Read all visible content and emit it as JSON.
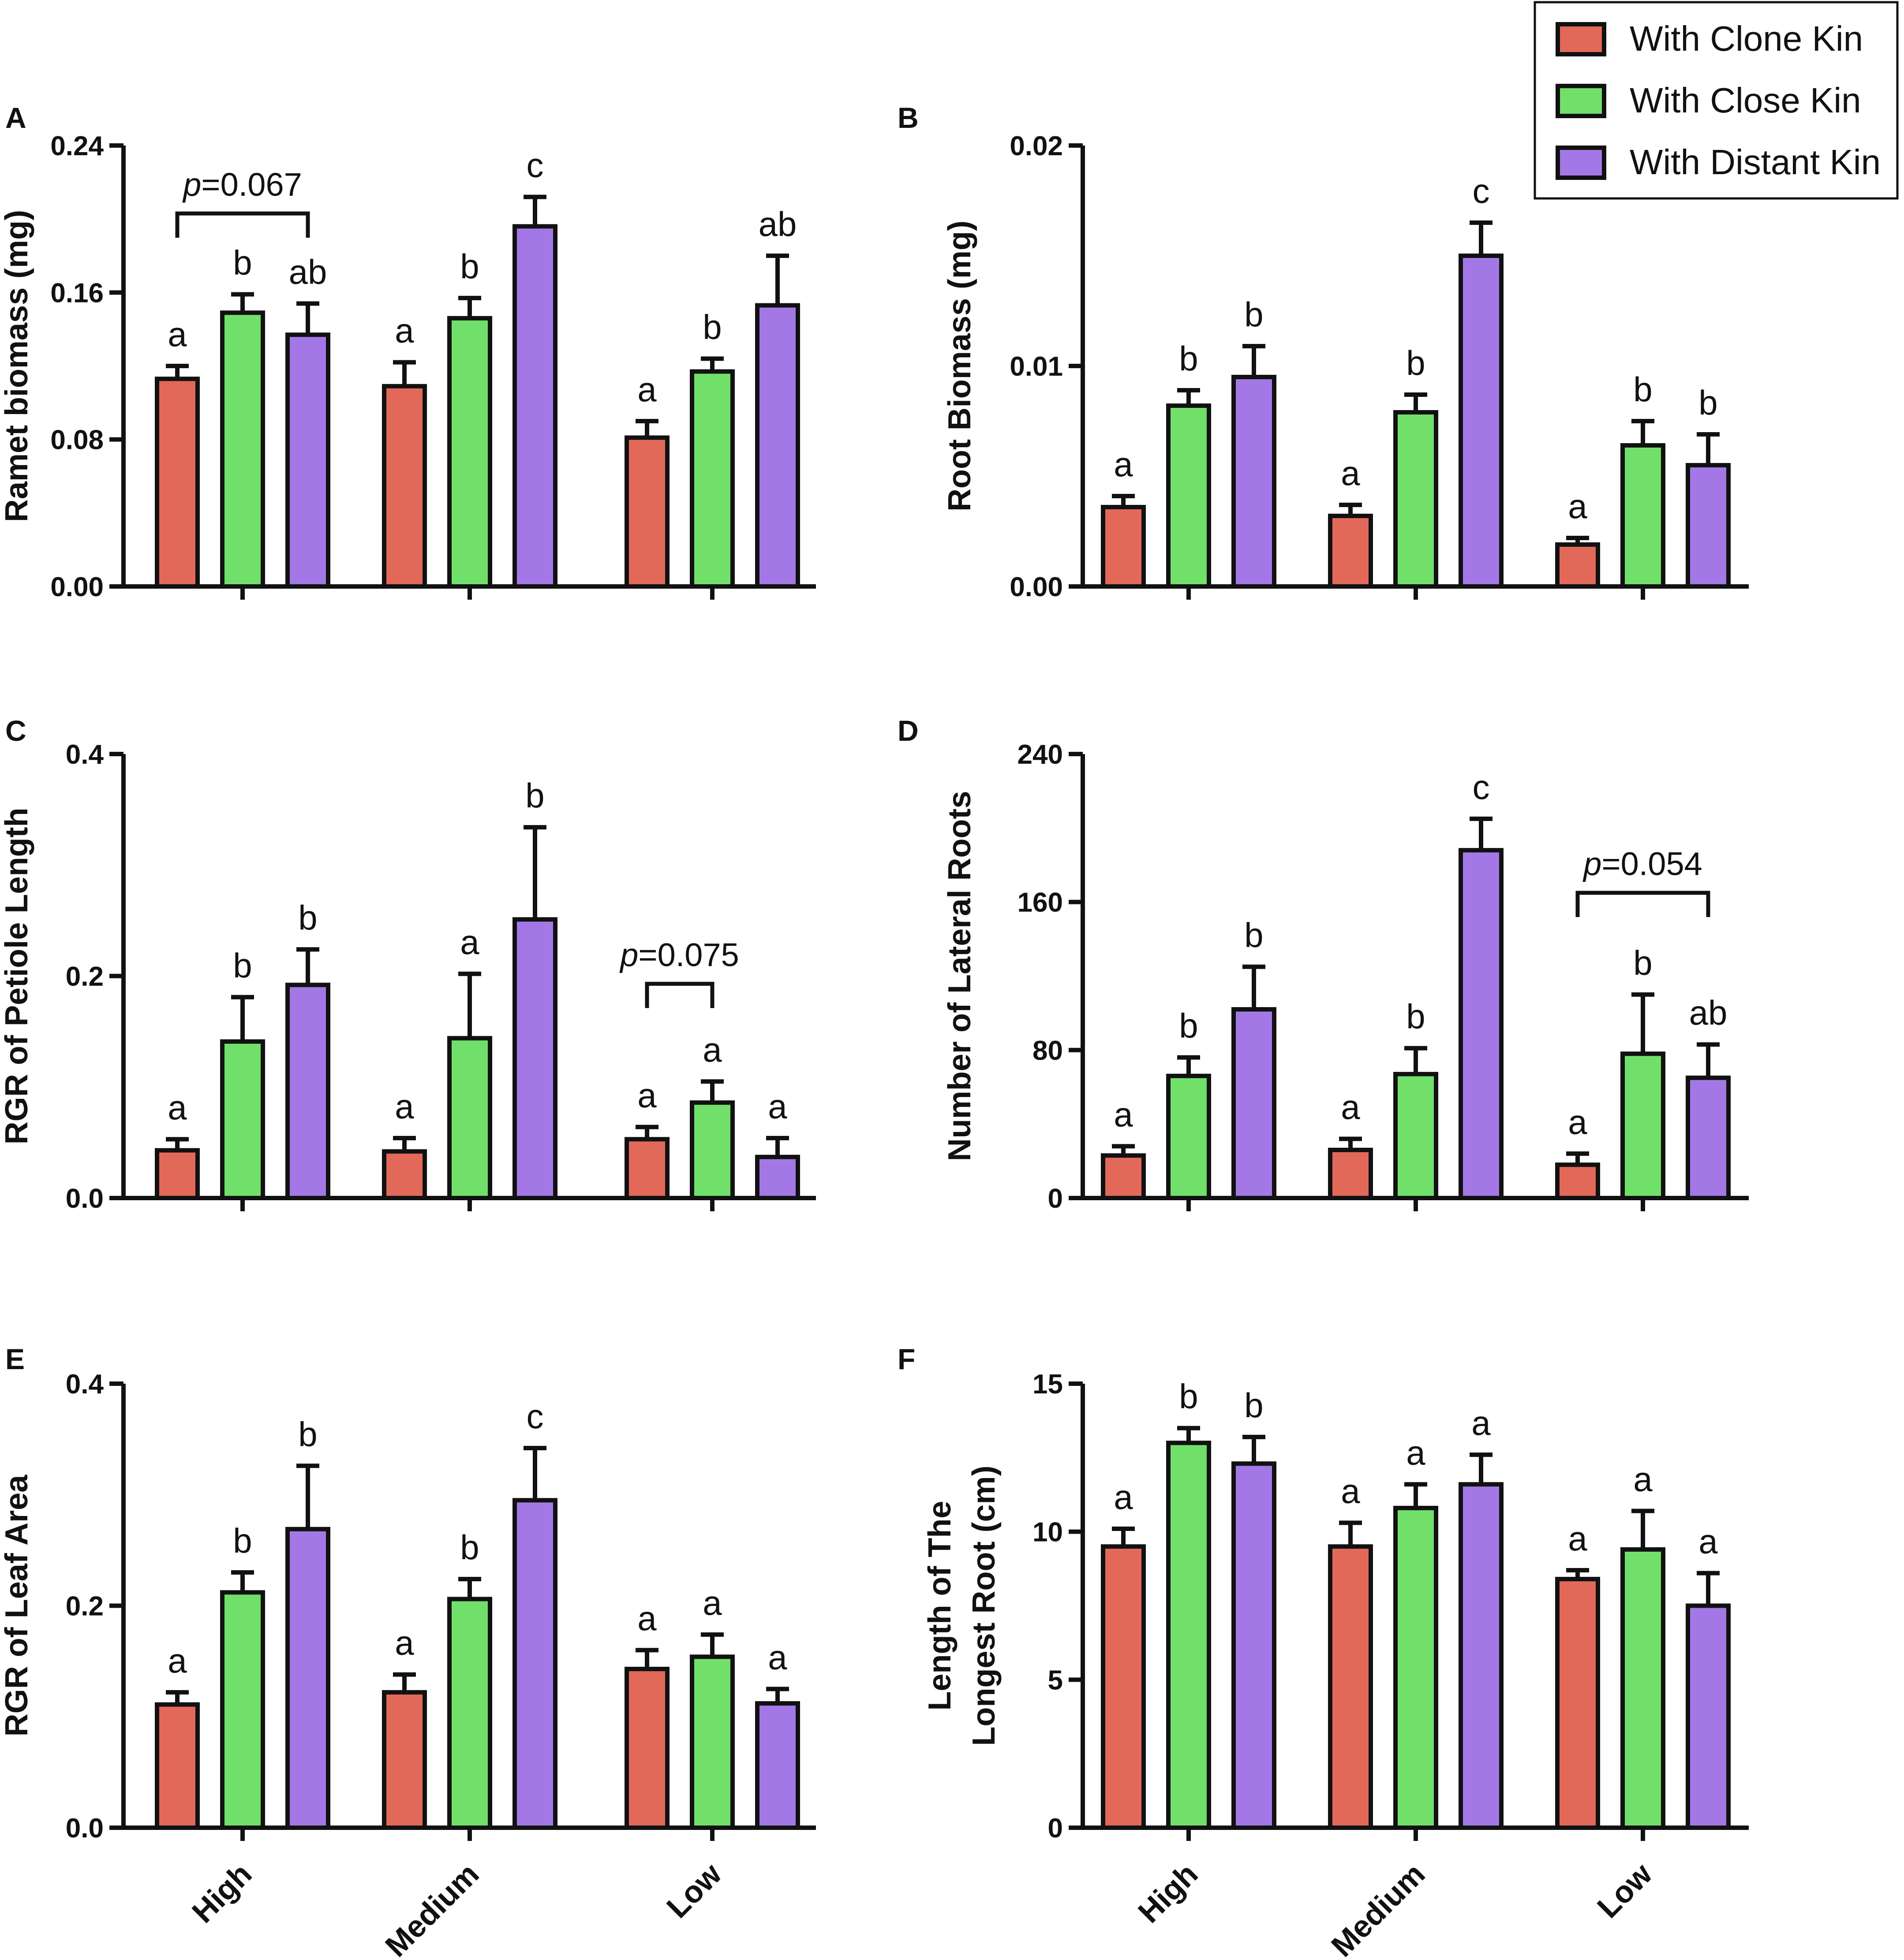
{
  "chart_data": {
    "legend": {
      "placement": "top-right",
      "entries": [
        {
          "label": "With Clone Kin",
          "color": "#e2695a"
        },
        {
          "label": "With Close Kin",
          "color": "#70e06a"
        },
        {
          "label": "With Distant Kin",
          "color": "#a378e6"
        }
      ]
    },
    "x_categories": [
      "High",
      "Medium",
      "Low"
    ],
    "panels": [
      {
        "id": "A",
        "type": "bar",
        "ylabel": "Ramet biomass (mg)",
        "ylim": [
          0,
          0.24
        ],
        "yticks": [
          0.0,
          0.08,
          0.16,
          0.24
        ],
        "ytick_labels": [
          "0.00",
          "0.08",
          "0.16",
          "0.24"
        ],
        "series": [
          {
            "name": "With Clone Kin",
            "values": [
              0.113,
              0.109,
              0.081
            ],
            "errors": [
              0.007,
              0.013,
              0.009
            ]
          },
          {
            "name": "With Close Kin",
            "values": [
              0.149,
              0.146,
              0.117
            ],
            "errors": [
              0.01,
              0.011,
              0.007
            ]
          },
          {
            "name": "With Distant Kin",
            "values": [
              0.137,
              0.196,
              0.153
            ],
            "errors": [
              0.017,
              0.016,
              0.027
            ]
          }
        ],
        "letters": [
          [
            "a",
            "b",
            "ab"
          ],
          [
            "a",
            "b",
            "c"
          ],
          [
            "a",
            "b",
            "ab"
          ]
        ],
        "pvalue": {
          "group": 0,
          "from": 0,
          "to": 2,
          "y": 0.203,
          "label": "p=0.067"
        }
      },
      {
        "id": "B",
        "type": "bar",
        "ylabel": "Root Biomass (mg)",
        "ylim": [
          0,
          0.02
        ],
        "yticks": [
          0.0,
          0.01,
          0.02
        ],
        "ytick_labels": [
          "0.00",
          "0.01",
          "0.02"
        ],
        "series": [
          {
            "name": "With Clone Kin",
            "values": [
              0.0036,
              0.0032,
              0.0019
            ],
            "errors": [
              0.0005,
              0.0005,
              0.0003
            ]
          },
          {
            "name": "With Close Kin",
            "values": [
              0.0082,
              0.0079,
              0.0064
            ],
            "errors": [
              0.0007,
              0.0008,
              0.0011
            ]
          },
          {
            "name": "With Distant Kin",
            "values": [
              0.0095,
              0.015,
              0.0055
            ],
            "errors": [
              0.0014,
              0.0015,
              0.0014
            ]
          }
        ],
        "letters": [
          [
            "a",
            "b",
            "b"
          ],
          [
            "a",
            "b",
            "c"
          ],
          [
            "a",
            "b",
            "b"
          ]
        ],
        "pvalue": null
      },
      {
        "id": "C",
        "type": "bar",
        "ylabel": "RGR of Petiole Length",
        "ylim": [
          0,
          0.4
        ],
        "yticks": [
          0.0,
          0.2,
          0.4
        ],
        "ytick_labels": [
          "0.0",
          "0.2",
          "0.4"
        ],
        "series": [
          {
            "name": "With Clone Kin",
            "values": [
              0.043,
              0.042,
              0.053
            ],
            "errors": [
              0.01,
              0.012,
              0.011
            ]
          },
          {
            "name": "With Close Kin",
            "values": [
              0.141,
              0.144,
              0.086
            ],
            "errors": [
              0.04,
              0.058,
              0.019
            ]
          },
          {
            "name": "With Distant Kin",
            "values": [
              0.192,
              0.251,
              0.037
            ],
            "errors": [
              0.032,
              0.083,
              0.017
            ]
          }
        ],
        "letters": [
          [
            "a",
            "b",
            "b"
          ],
          [
            "a",
            "a",
            "b"
          ],
          [
            "a",
            "a",
            "a"
          ]
        ],
        "pvalue": {
          "group": 2,
          "from": 0,
          "to": 1,
          "y": 0.193,
          "label": "p=0.075"
        }
      },
      {
        "id": "D",
        "type": "bar",
        "ylabel": "Number of Lateral Roots",
        "ylim": [
          0,
          240
        ],
        "yticks": [
          0,
          80,
          160,
          240
        ],
        "ytick_labels": [
          "0",
          "80",
          "160",
          "240"
        ],
        "series": [
          {
            "name": "With Clone Kin",
            "values": [
              23,
              26,
              18
            ],
            "errors": [
              5,
              6,
              6
            ]
          },
          {
            "name": "With Close Kin",
            "values": [
              66,
              67,
              78
            ],
            "errors": [
              10,
              14,
              32
            ]
          },
          {
            "name": "With Distant Kin",
            "values": [
              102,
              188,
              65
            ],
            "errors": [
              23,
              17,
              18
            ]
          }
        ],
        "letters": [
          [
            "a",
            "b",
            "b"
          ],
          [
            "a",
            "b",
            "c"
          ],
          [
            "a",
            "b",
            "ab"
          ]
        ],
        "pvalue": {
          "group": 2,
          "from": 0,
          "to": 2,
          "y": 165,
          "label": "p=0.054"
        }
      },
      {
        "id": "E",
        "type": "bar",
        "ylabel": "RGR of Leaf Area",
        "ylim": [
          0,
          0.4
        ],
        "yticks": [
          0.0,
          0.2,
          0.4
        ],
        "ytick_labels": [
          "0.0",
          "0.2",
          "0.4"
        ],
        "series": [
          {
            "name": "With Clone Kin",
            "values": [
              0.111,
              0.122,
              0.143
            ],
            "errors": [
              0.011,
              0.016,
              0.017
            ]
          },
          {
            "name": "With Close Kin",
            "values": [
              0.212,
              0.206,
              0.154
            ],
            "errors": [
              0.018,
              0.018,
              0.02
            ]
          },
          {
            "name": "With Distant Kin",
            "values": [
              0.269,
              0.295,
              0.112
            ],
            "errors": [
              0.057,
              0.047,
              0.013
            ]
          }
        ],
        "letters": [
          [
            "a",
            "b",
            "b"
          ],
          [
            "a",
            "b",
            "c"
          ],
          [
            "a",
            "a",
            "a"
          ]
        ],
        "pvalue": null
      },
      {
        "id": "F",
        "type": "bar",
        "ylabel": [
          "Length of The",
          "Longest Root (cm)"
        ],
        "ylim": [
          0,
          15
        ],
        "yticks": [
          0,
          5,
          10,
          15
        ],
        "ytick_labels": [
          "0",
          "5",
          "10",
          "15"
        ],
        "series": [
          {
            "name": "With Clone Kin",
            "values": [
              9.5,
              9.5,
              8.4
            ],
            "errors": [
              0.6,
              0.8,
              0.3
            ]
          },
          {
            "name": "With Close Kin",
            "values": [
              13.0,
              10.8,
              9.4
            ],
            "errors": [
              0.5,
              0.8,
              1.3
            ]
          },
          {
            "name": "With Distant Kin",
            "values": [
              12.3,
              11.6,
              7.5
            ],
            "errors": [
              0.9,
              1.0,
              1.1
            ]
          }
        ],
        "letters": [
          [
            "a",
            "b",
            "b"
          ],
          [
            "a",
            "a",
            "a"
          ],
          [
            "a",
            "a",
            "a"
          ]
        ],
        "pvalue": null
      }
    ]
  }
}
